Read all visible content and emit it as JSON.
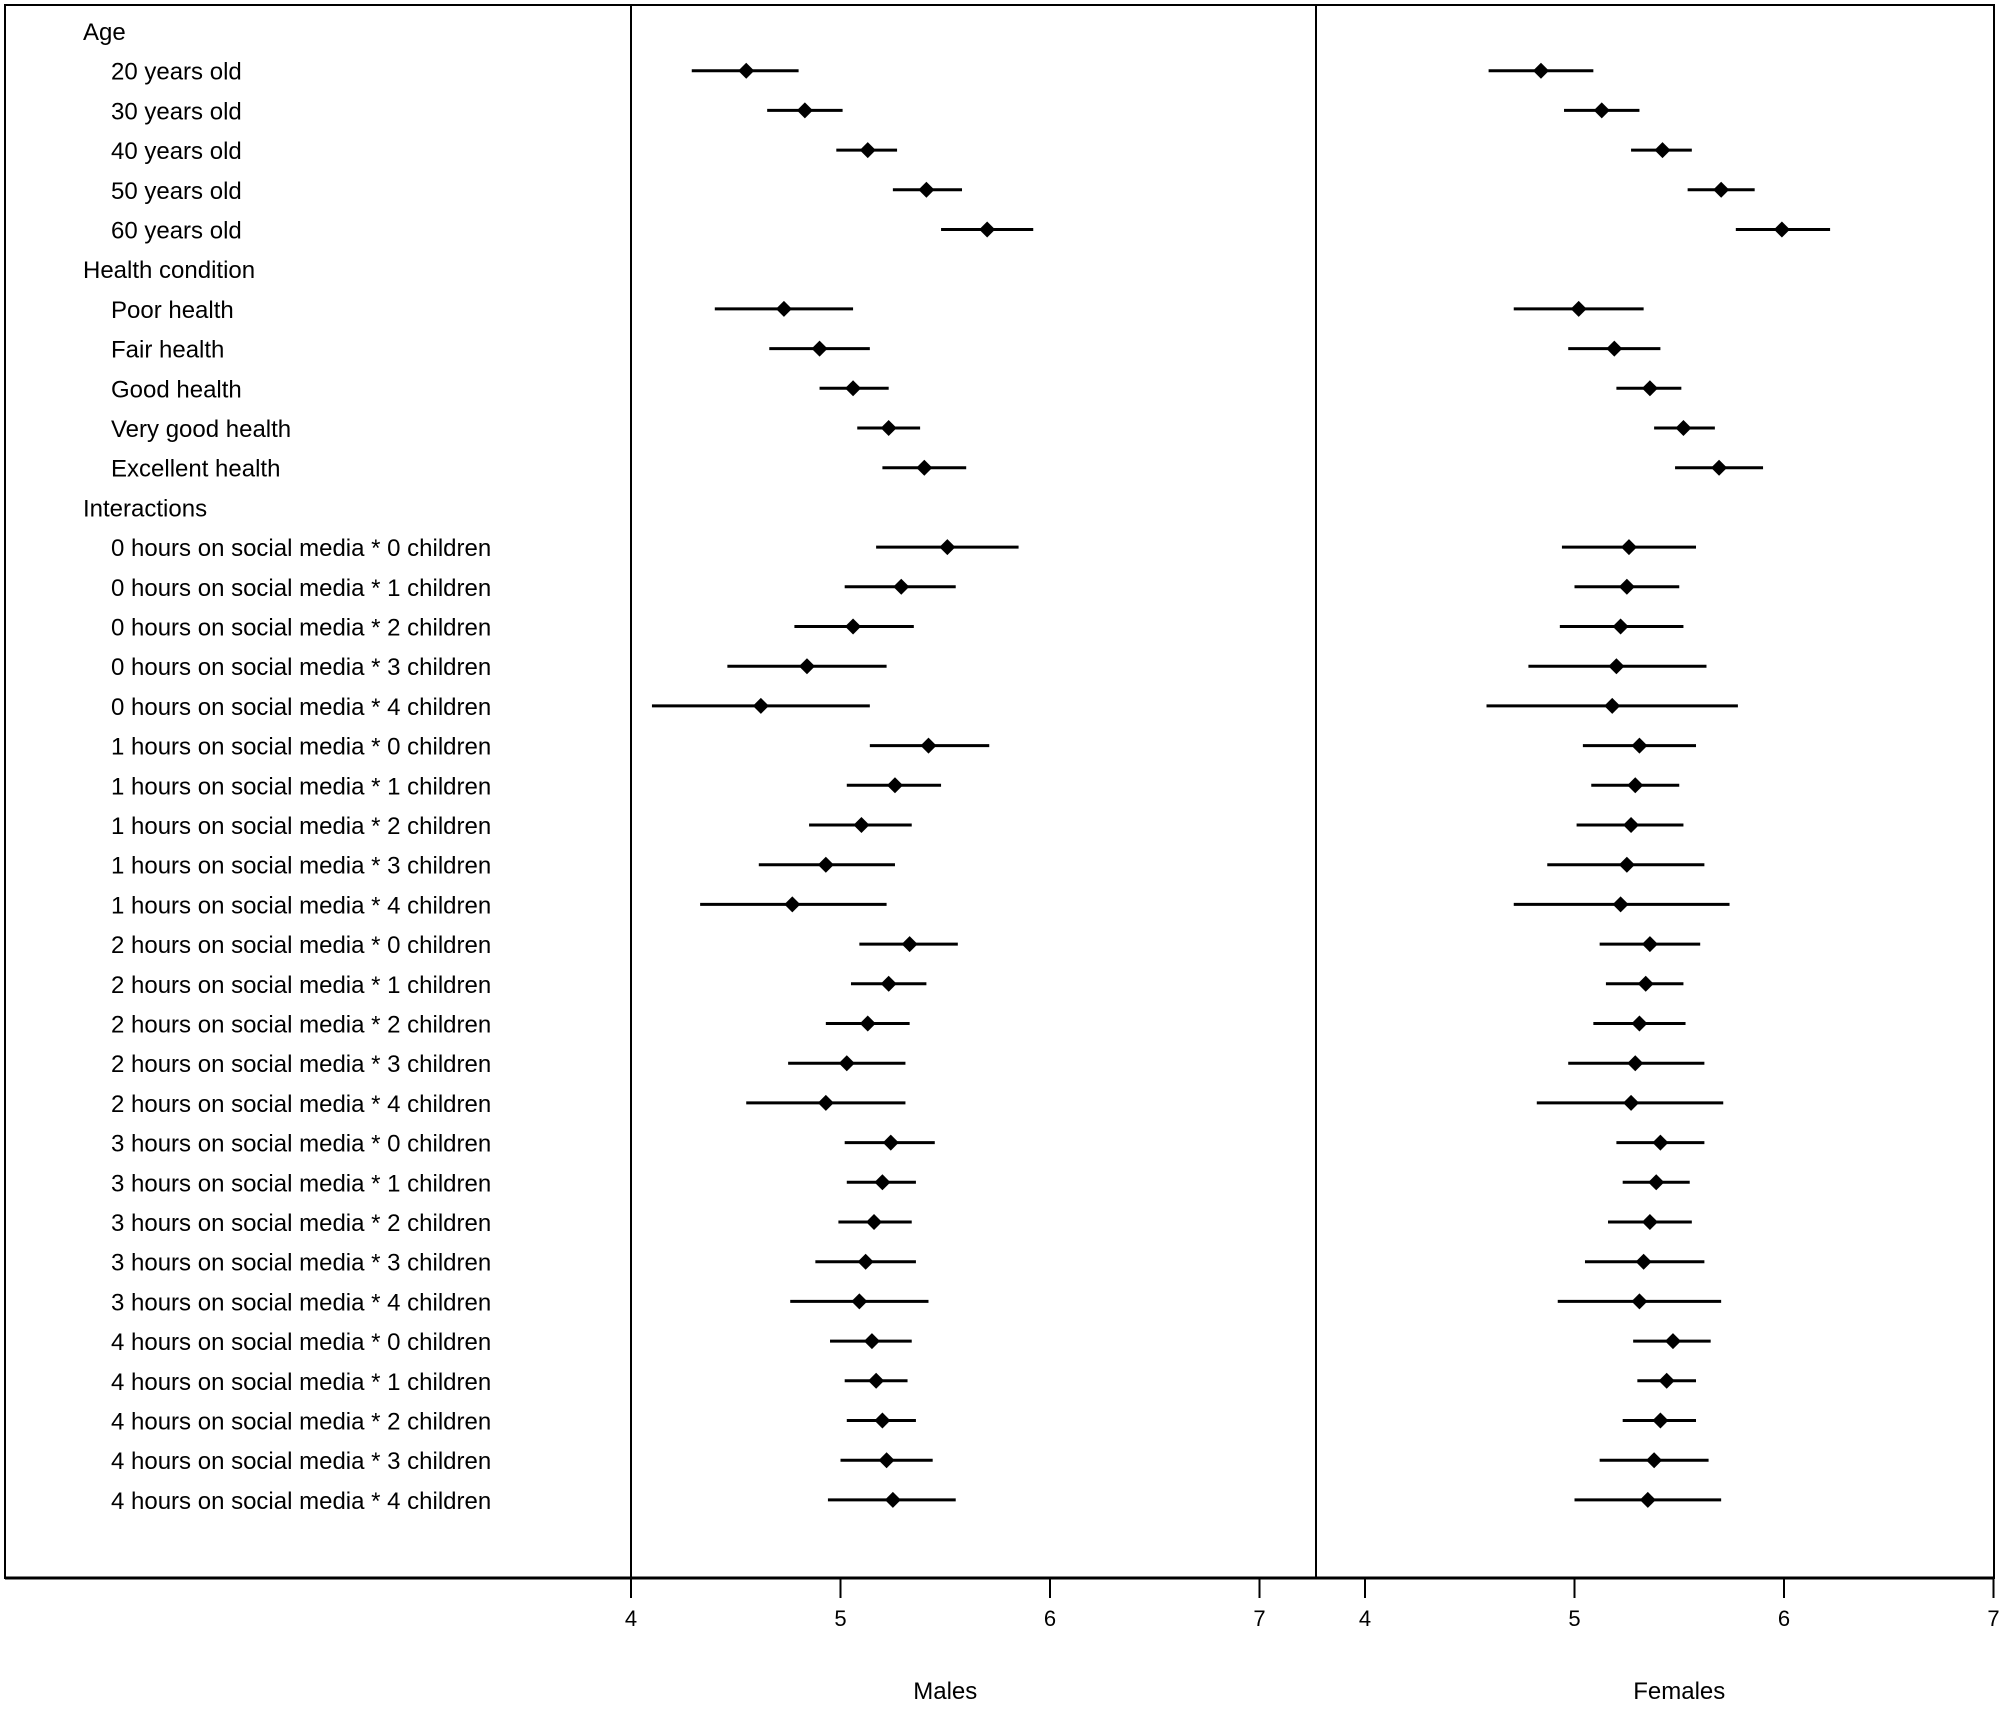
{
  "chart_data": {
    "type": "forest",
    "panels": [
      {
        "name": "Males",
        "xlabel": "Males",
        "xlim": [
          4,
          7
        ],
        "ticks": [
          4,
          5,
          6,
          7
        ]
      },
      {
        "name": "Females",
        "xlabel": "Females",
        "xlim": [
          4,
          7
        ],
        "ticks": [
          4,
          5,
          6,
          7
        ]
      }
    ],
    "rows": [
      {
        "label": "Age",
        "header": true
      },
      {
        "label": "20 years old",
        "male": [
          4.29,
          4.55,
          4.8
        ],
        "female": [
          4.59,
          4.84,
          5.09
        ]
      },
      {
        "label": "30 years old",
        "male": [
          4.65,
          4.83,
          5.01
        ],
        "female": [
          4.95,
          5.13,
          5.31
        ]
      },
      {
        "label": "40 years old",
        "male": [
          4.98,
          5.13,
          5.27
        ],
        "female": [
          5.27,
          5.42,
          5.56
        ]
      },
      {
        "label": "50 years old",
        "male": [
          5.25,
          5.41,
          5.58
        ],
        "female": [
          5.54,
          5.7,
          5.86
        ]
      },
      {
        "label": "60 years old",
        "male": [
          5.48,
          5.7,
          5.92
        ],
        "female": [
          5.77,
          5.99,
          6.22
        ]
      },
      {
        "label": "Health condition",
        "header": true
      },
      {
        "label": "Poor health",
        "male": [
          4.4,
          4.73,
          5.06
        ],
        "female": [
          4.71,
          5.02,
          5.33
        ]
      },
      {
        "label": "Fair health",
        "male": [
          4.66,
          4.9,
          5.14
        ],
        "female": [
          4.97,
          5.19,
          5.41
        ]
      },
      {
        "label": "Good health",
        "male": [
          4.9,
          5.06,
          5.23
        ],
        "female": [
          5.2,
          5.36,
          5.51
        ]
      },
      {
        "label": "Very good health",
        "male": [
          5.08,
          5.23,
          5.38
        ],
        "female": [
          5.38,
          5.52,
          5.67
        ]
      },
      {
        "label": "Excellent health",
        "male": [
          5.2,
          5.4,
          5.6
        ],
        "female": [
          5.48,
          5.69,
          5.9
        ]
      },
      {
        "label": "Interactions",
        "header": true
      },
      {
        "label": "0 hours on social media * 0 children",
        "male": [
          5.17,
          5.51,
          5.85
        ],
        "female": [
          4.94,
          5.26,
          5.58
        ]
      },
      {
        "label": "0 hours on social media * 1 children",
        "male": [
          5.02,
          5.29,
          5.55
        ],
        "female": [
          5.0,
          5.25,
          5.5
        ]
      },
      {
        "label": "0 hours on social media * 2 children",
        "male": [
          4.78,
          5.06,
          5.35
        ],
        "female": [
          4.93,
          5.22,
          5.52
        ]
      },
      {
        "label": "0 hours on social media * 3 children",
        "male": [
          4.46,
          4.84,
          5.22
        ],
        "female": [
          4.78,
          5.2,
          5.63
        ]
      },
      {
        "label": "0 hours on social media * 4 children",
        "male": [
          4.1,
          4.62,
          5.14
        ],
        "female": [
          4.58,
          5.18,
          5.78
        ]
      },
      {
        "label": "1 hours on social media * 0 children",
        "male": [
          5.14,
          5.42,
          5.71
        ],
        "female": [
          5.04,
          5.31,
          5.58
        ]
      },
      {
        "label": "1 hours on social media * 1 children",
        "male": [
          5.03,
          5.26,
          5.48
        ],
        "female": [
          5.08,
          5.29,
          5.5
        ]
      },
      {
        "label": "1 hours on social media * 2 children",
        "male": [
          4.85,
          5.1,
          5.34
        ],
        "female": [
          5.01,
          5.27,
          5.52
        ]
      },
      {
        "label": "1 hours on social media * 3 children",
        "male": [
          4.61,
          4.93,
          5.26
        ],
        "female": [
          4.87,
          5.25,
          5.62
        ]
      },
      {
        "label": "1 hours on social media * 4 children",
        "male": [
          4.33,
          4.77,
          5.22
        ],
        "female": [
          4.71,
          5.22,
          5.74
        ]
      },
      {
        "label": "2 hours on social media * 0 children",
        "male": [
          5.09,
          5.33,
          5.56
        ],
        "female": [
          5.12,
          5.36,
          5.6
        ]
      },
      {
        "label": "2 hours on social media * 1 children",
        "male": [
          5.05,
          5.23,
          5.41
        ],
        "female": [
          5.15,
          5.34,
          5.52
        ]
      },
      {
        "label": "2 hours on social media * 2 children",
        "male": [
          4.93,
          5.13,
          5.33
        ],
        "female": [
          5.09,
          5.31,
          5.53
        ]
      },
      {
        "label": "2 hours on social media * 3 children",
        "male": [
          4.75,
          5.03,
          5.31
        ],
        "female": [
          4.97,
          5.29,
          5.62
        ]
      },
      {
        "label": "2 hours on social media * 4 children",
        "male": [
          4.55,
          4.93,
          5.31
        ],
        "female": [
          4.82,
          5.27,
          5.71
        ]
      },
      {
        "label": "3 hours on social media * 0 children",
        "male": [
          5.02,
          5.24,
          5.45
        ],
        "female": [
          5.2,
          5.41,
          5.62
        ]
      },
      {
        "label": "3 hours on social media * 1 children",
        "male": [
          5.03,
          5.2,
          5.36
        ],
        "female": [
          5.23,
          5.39,
          5.55
        ]
      },
      {
        "label": "3 hours on social media * 2 children",
        "male": [
          4.99,
          5.16,
          5.34
        ],
        "female": [
          5.16,
          5.36,
          5.56
        ]
      },
      {
        "label": "3 hours on social media * 3 children",
        "male": [
          4.88,
          5.12,
          5.36
        ],
        "female": [
          5.05,
          5.33,
          5.62
        ]
      },
      {
        "label": "3 hours on social media * 4 children",
        "male": [
          4.76,
          5.09,
          5.42
        ],
        "female": [
          4.92,
          5.31,
          5.7
        ]
      },
      {
        "label": "4 hours on social media * 0 children",
        "male": [
          4.95,
          5.15,
          5.34
        ],
        "female": [
          5.28,
          5.47,
          5.65
        ]
      },
      {
        "label": "4 hours on social media * 1 children",
        "male": [
          5.02,
          5.17,
          5.32
        ],
        "female": [
          5.3,
          5.44,
          5.58
        ]
      },
      {
        "label": "4 hours on social media * 2 children",
        "male": [
          5.03,
          5.2,
          5.36
        ],
        "female": [
          5.23,
          5.41,
          5.58
        ]
      },
      {
        "label": "4 hours on social media * 3 children",
        "male": [
          5.0,
          5.22,
          5.44
        ],
        "female": [
          5.12,
          5.38,
          5.64
        ]
      },
      {
        "label": "4 hours on social media * 4 children",
        "male": [
          4.94,
          5.25,
          5.55
        ],
        "female": [
          5.0,
          5.35,
          5.7
        ]
      }
    ]
  }
}
